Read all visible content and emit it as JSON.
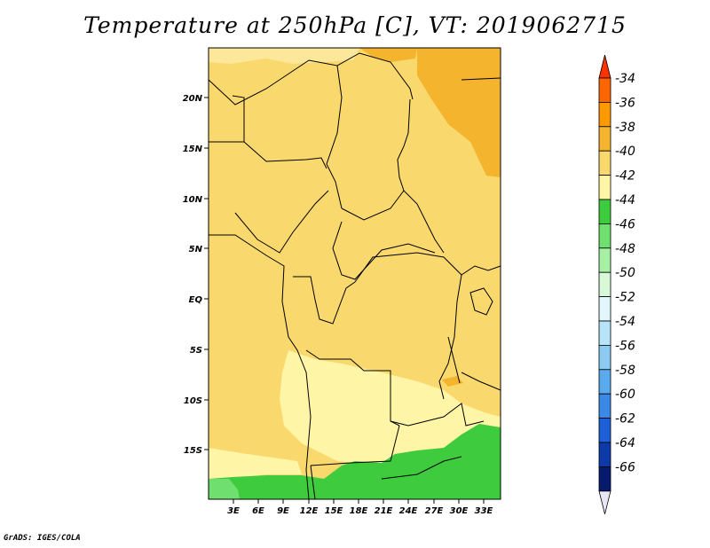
{
  "title": "Temperature at 250hPa [C], VT: 2019062715",
  "credit": "GrADS: IGES/COLA",
  "map": {
    "lat_labels": [
      "20N",
      "15N",
      "10N",
      "5N",
      "EQ",
      "5S",
      "10S",
      "15S"
    ],
    "lon_labels": [
      "3E",
      "6E",
      "9E",
      "12E",
      "15E",
      "18E",
      "21E",
      "24E",
      "27E",
      "30E",
      "33E"
    ]
  },
  "colorbar": {
    "labels": [
      "-34",
      "-36",
      "-38",
      "-40",
      "-42",
      "-44",
      "-46",
      "-48",
      "-50",
      "-52",
      "-54",
      "-56",
      "-58",
      "-60",
      "-62",
      "-64",
      "-66"
    ],
    "colors": [
      "#ff3300",
      "#ff6600",
      "#ff9900",
      "#f5b42e",
      "#f9d86e",
      "#fff5a6",
      "#3ecb3e",
      "#6fe06f",
      "#a6f0a6",
      "#d7f9d7",
      "#e1f7fb",
      "#b8e4f8",
      "#8ccaf4",
      "#5aaaee",
      "#3b88e6",
      "#1d5fd6",
      "#0c3aa8",
      "#061a6e",
      "#e6e6f5"
    ]
  }
}
